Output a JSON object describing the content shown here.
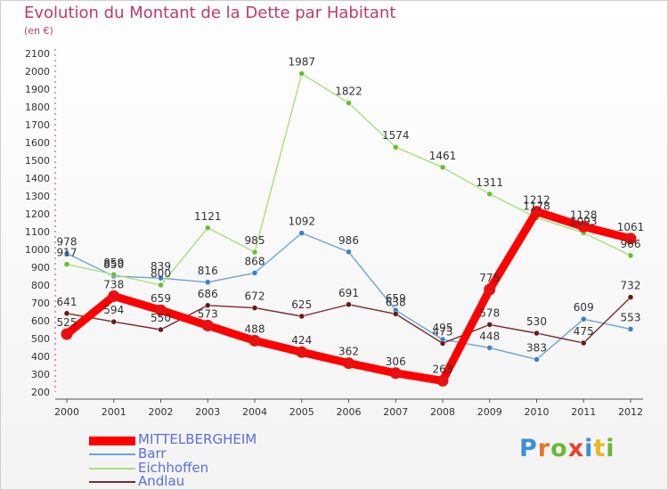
{
  "title": "Evolution du Montant de la Dette par Habitant",
  "subtitle": "(en €)",
  "brand": {
    "text": "Proxiti",
    "colors": [
      "#3a8fd8",
      "#e8742a",
      "#6ab832",
      "#e84030",
      "#3a8fd8",
      "#e8b820",
      "#6ab832"
    ]
  },
  "chart_data": {
    "type": "line",
    "x": [
      "2000",
      "2001",
      "2002",
      "2003",
      "2004",
      "2005",
      "2006",
      "2007",
      "2008",
      "2009",
      "2010",
      "2011",
      "2012"
    ],
    "ylim": [
      200,
      2100
    ],
    "yticks": [
      200,
      300,
      400,
      500,
      600,
      700,
      800,
      900,
      1000,
      1100,
      1200,
      1300,
      1400,
      1500,
      1600,
      1700,
      1800,
      1900,
      2000,
      2100
    ],
    "grid": false,
    "legend_position": "bottom-left",
    "series": [
      {
        "name": "MITTELBERGHEIM",
        "color": "#ff0000",
        "marker": "#e81010",
        "values": [
          525,
          738,
          659,
          573,
          488,
          424,
          362,
          306,
          263,
          775,
          1212,
          1128,
          1061
        ]
      },
      {
        "name": "Barr",
        "color": "#6aa3d8",
        "marker": "#3a7fc8",
        "values": [
          978,
          850,
          839,
          816,
          868,
          1092,
          986,
          659,
          495,
          448,
          383,
          609,
          553
        ]
      },
      {
        "name": "Eichhoffen",
        "color": "#a8e07a",
        "marker": "#6ac030",
        "values": [
          917,
          859,
          800,
          1121,
          985,
          1987,
          1822,
          1574,
          1461,
          1311,
          1178,
          1093,
          966
        ]
      },
      {
        "name": "Andlau",
        "color": "#7a2a2a",
        "marker": "#6a1818",
        "values": [
          641,
          594,
          550,
          686,
          672,
          625,
          691,
          638,
          473,
          578,
          530,
          475,
          732
        ]
      }
    ]
  }
}
